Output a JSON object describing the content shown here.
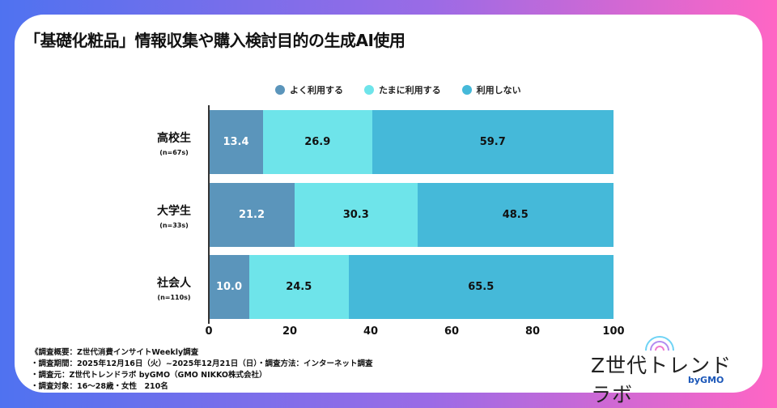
{
  "title": "「基礎化粧品」情報収集や購入検討目的の生成AI使用",
  "chart_data": {
    "type": "bar",
    "stacked": true,
    "orientation": "horizontal",
    "title": "「基礎化粧品」情報収集や購入検討目的の生成AI使用",
    "categories": [
      "高校生",
      "大学生",
      "社会人"
    ],
    "category_sub": [
      "(n=67s)",
      "(n=33s)",
      "(n=110s)"
    ],
    "series": [
      {
        "name": "よく利用する",
        "color": "#5b95bb",
        "label_color": "#ffffff",
        "values": [
          13.4,
          21.2,
          10.0
        ]
      },
      {
        "name": "たまに利用する",
        "color": "#6ee4ea",
        "label_color": "#111111",
        "values": [
          26.9,
          30.3,
          24.5
        ]
      },
      {
        "name": "利用しない",
        "color": "#45b9d9",
        "label_color": "#111111",
        "values": [
          59.7,
          48.5,
          65.5
        ]
      }
    ],
    "xlim": [
      0,
      100
    ],
    "xticks": [
      "0",
      "20",
      "40",
      "60",
      "80",
      "100"
    ],
    "legend": "top"
  },
  "notes": [
    "《調査概要：Z世代消費インサイトWeekly調査",
    "・調査期間：2025年12月16日（火）~2025年12月21日（日）・調査方法：インターネット調査",
    "・調査元：Z世代トレンドラボ byGMO（GMO NIKKO株式会社）",
    "・調査対象：16～28歳・女性　210名"
  ],
  "logo": {
    "name": "Z世代トレンドラボ",
    "by": "byGMO"
  }
}
